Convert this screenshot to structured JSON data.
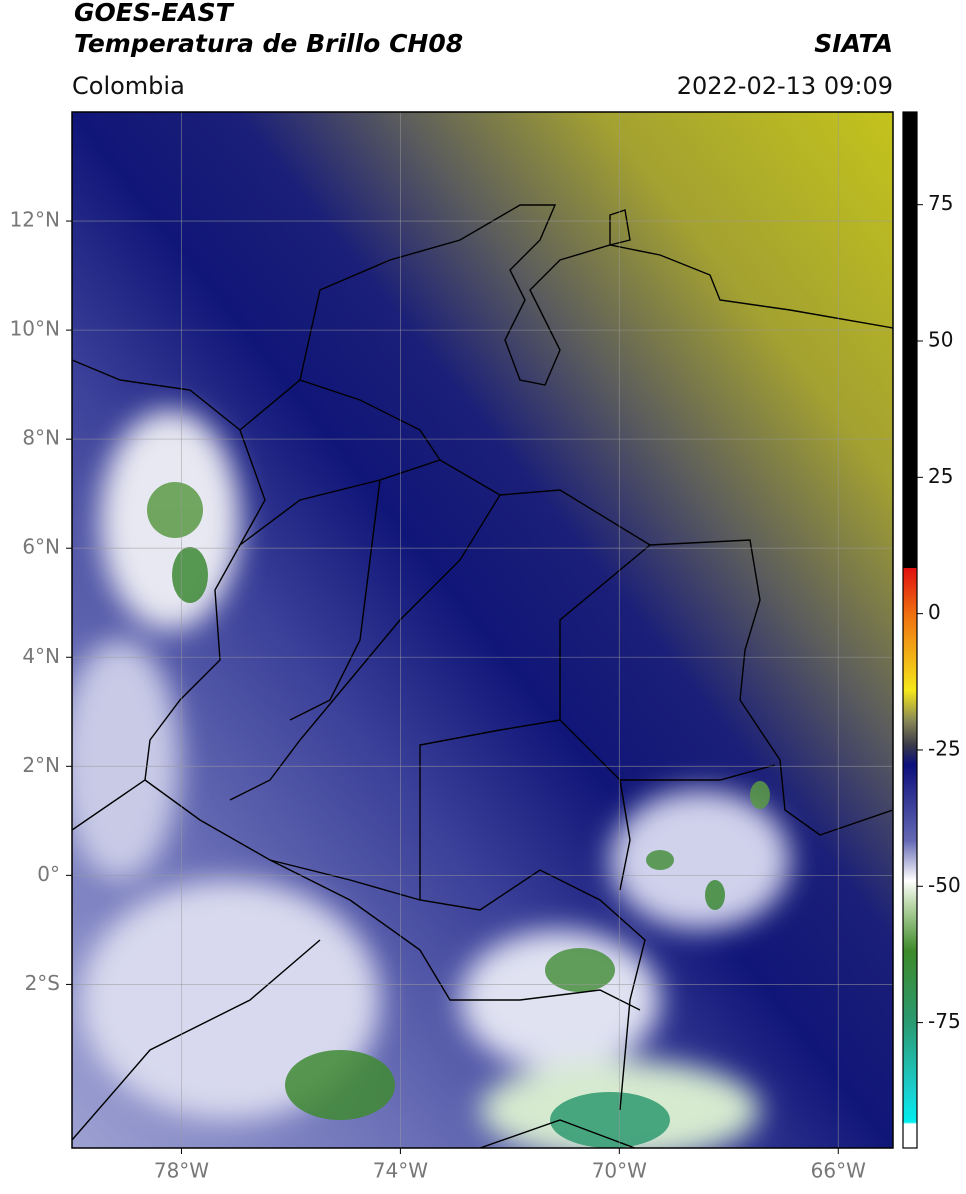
{
  "header": {
    "title": "GOES-EAST",
    "subtitle": "Temperatura de Brillo CH08",
    "source": "SIATA",
    "region": "Colombia",
    "datetime": "2022-02-13 09:09"
  },
  "map": {
    "xlim": [
      -80,
      -65
    ],
    "ylim": [
      -5,
      14
    ],
    "grid": true,
    "xticks": [
      {
        "value": -78,
        "label": "78°W"
      },
      {
        "value": -74,
        "label": "74°W"
      },
      {
        "value": -70,
        "label": "70°W"
      },
      {
        "value": -66,
        "label": "66°W"
      }
    ],
    "yticks": [
      {
        "value": 12,
        "label": "12°N"
      },
      {
        "value": 10,
        "label": "10°N"
      },
      {
        "value": 8,
        "label": "8°N"
      },
      {
        "value": 6,
        "label": "6°N"
      },
      {
        "value": 4,
        "label": "4°N"
      },
      {
        "value": 2,
        "label": "2°N"
      },
      {
        "value": 0,
        "label": "0°"
      },
      {
        "value": -2,
        "label": "2°S"
      }
    ]
  },
  "colorbar": {
    "lim": [
      -98,
      92
    ],
    "ticks": [
      75,
      50,
      25,
      0,
      -25,
      -50,
      -75
    ]
  }
}
